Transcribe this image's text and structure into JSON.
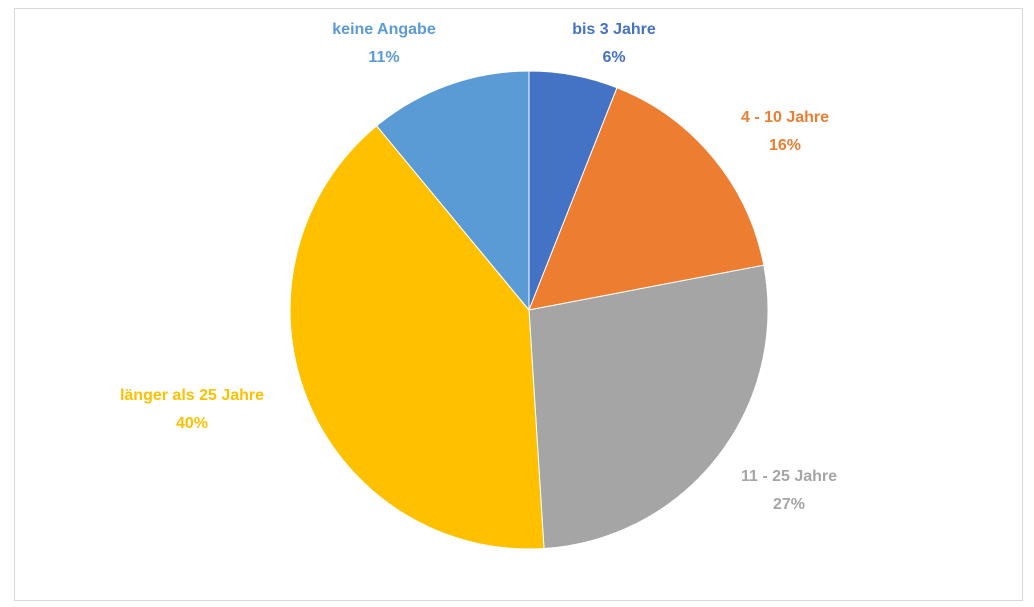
{
  "chart_data": {
    "type": "pie",
    "categories": [
      "bis 3 Jahre",
      "4 - 10 Jahre",
      "11 - 25 Jahre",
      "länger als 25 Jahre",
      "keine Angabe"
    ],
    "values": [
      6,
      16,
      27,
      40,
      11
    ],
    "value_labels": [
      "6%",
      "16%",
      "27%",
      "40%",
      "11%"
    ],
    "colors": [
      "#4472c4",
      "#ed7d31",
      "#a5a5a5",
      "#ffc000",
      "#5b9bd5"
    ]
  }
}
